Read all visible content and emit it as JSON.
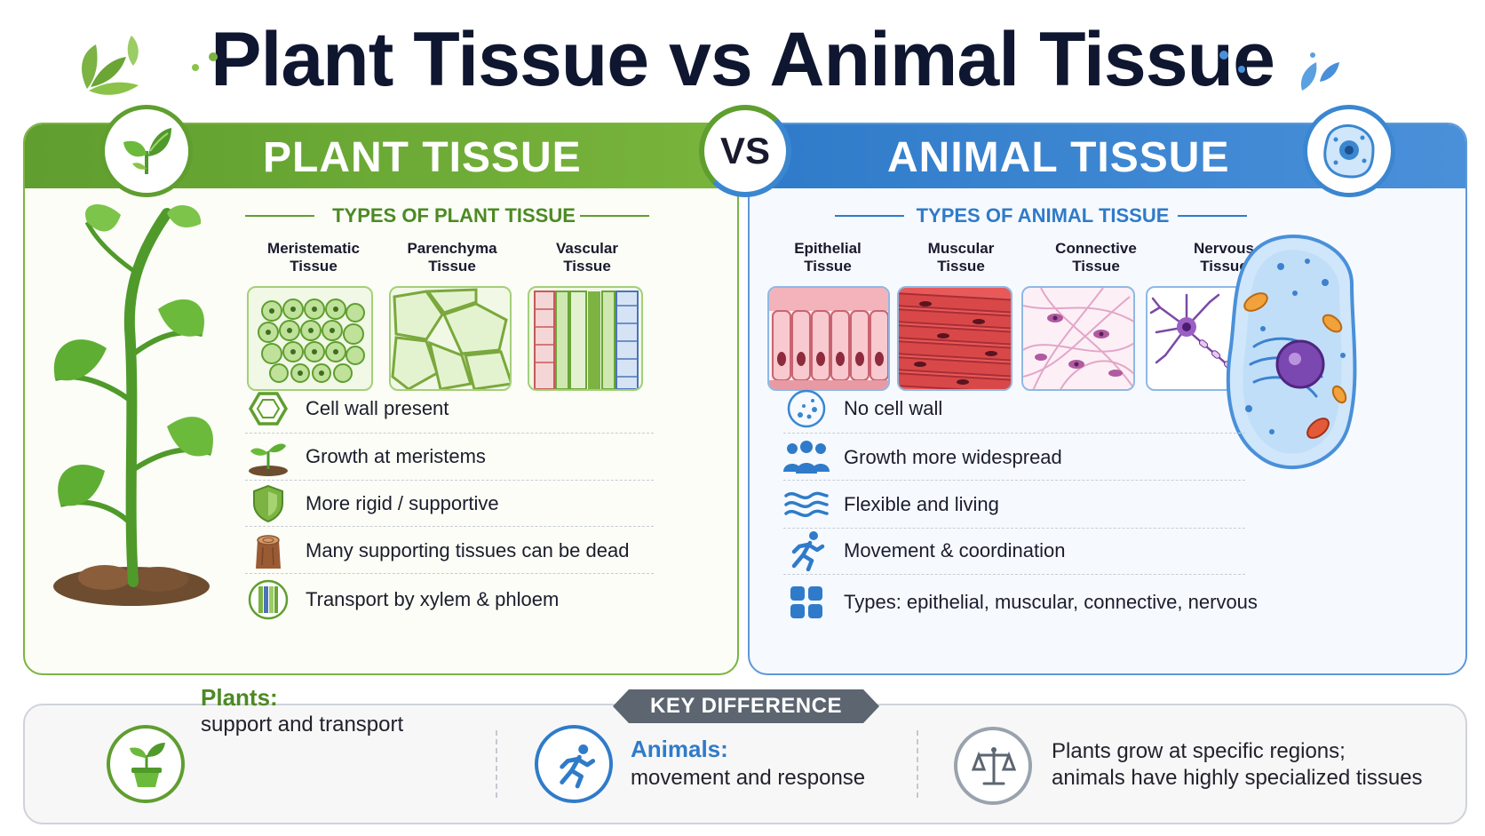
{
  "title": "Plant Tissue vs Animal Tissue",
  "vs_label": "VS",
  "plant": {
    "heading": "PLANT TISSUE",
    "types_title": "TYPES OF PLANT TISSUE",
    "types": [
      {
        "line1": "Meristematic",
        "line2": "Tissue"
      },
      {
        "line1": "Parenchyma",
        "line2": "Tissue"
      },
      {
        "line1": "Vascular",
        "line2": "Tissue"
      }
    ],
    "features": [
      {
        "icon": "hexagon-icon",
        "text": "Cell wall present"
      },
      {
        "icon": "sprout-icon",
        "text": "Growth at meristems"
      },
      {
        "icon": "shield-icon",
        "text": "More rigid / supportive"
      },
      {
        "icon": "tree-stump-icon",
        "text": "Many supporting tissues can be dead"
      },
      {
        "icon": "vascular-bundle-icon",
        "text": "Transport by xylem & phloem"
      }
    ],
    "color": "#5f9e2f"
  },
  "animal": {
    "heading": "ANIMAL TISSUE",
    "types_title": "TYPES OF ANIMAL TISSUE",
    "types": [
      {
        "line1": "Epithelial",
        "line2": "Tissue"
      },
      {
        "line1": "Muscular",
        "line2": "Tissue"
      },
      {
        "line1": "Connective",
        "line2": "Tissue"
      },
      {
        "line1": "Nervous",
        "line2": "Tissue"
      }
    ],
    "features": [
      {
        "icon": "dotted-circle-icon",
        "text": "No cell wall"
      },
      {
        "icon": "people-group-icon",
        "text": "Growth more widespread"
      },
      {
        "icon": "waves-icon",
        "text": "Flexible and living"
      },
      {
        "icon": "running-person-icon",
        "text": "Movement & coordination"
      },
      {
        "icon": "grid-icon",
        "text": "Types: epithelial, muscular, connective, nervous"
      }
    ],
    "color": "#2f7bc9"
  },
  "key_difference": {
    "tag": "KEY DIFFERENCE",
    "plants_head": "Plants:",
    "plants_body": "support and transport",
    "animals_head": "Animals:",
    "animals_body": "movement and response",
    "summary_line1": "Plants grow at specific regions;",
    "summary_line2": "animals have highly specialized tissues"
  }
}
